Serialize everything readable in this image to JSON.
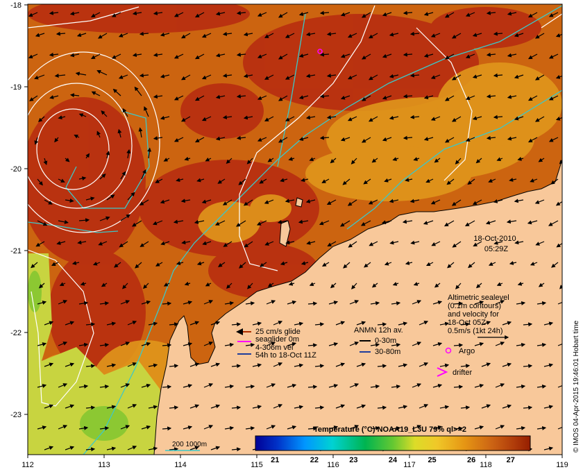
{
  "map": {
    "lon_ticks": [
      "112",
      "113",
      "114",
      "115",
      "116",
      "117",
      "118",
      "119"
    ],
    "lat_ticks": [
      "-18",
      "-19",
      "-20",
      "-21",
      "-22",
      "-23"
    ],
    "date_label": "18-Oct-2010",
    "time_label": "05:29Z",
    "credit": "© IMOS 04-Apr-2015 19:46:01 Hobart time"
  },
  "legend": {
    "altimetry_lines": [
      "Altimetric sealevel",
      "(0.1m contours)",
      "and velocity for",
      "18-Oct 05Z",
      "0.5m/s (1kt 24h)"
    ],
    "argo_label": "Argo",
    "drifter_label": "drifter",
    "glider_lines": [
      "25 cm/s glide",
      "seaglider 0m",
      "4-306m vel",
      "54h to 18-Oct 11Z"
    ],
    "anmn_title": "ANMN 12h av.",
    "anmn_items": [
      "0-30m",
      "30-80m"
    ],
    "isobath_label": "200  1000m",
    "colors": {
      "glide_arrow": "#b03000",
      "seaglider_arrow": "#ff00ff",
      "vel_arrow": "#1e3c9c",
      "anmn_shallow": "#000000",
      "anmn_deep": "#1e3c9c",
      "isobath": "#3cc8c8",
      "argo": "#ff00ff"
    }
  },
  "colorbar": {
    "title": "Temperature (°C) NOAA19_L3U 79% ql>=2",
    "ticks": [
      "21",
      "22",
      "23",
      "24",
      "25",
      "26",
      "27"
    ],
    "range": [
      20.5,
      27.5
    ]
  },
  "palette": {
    "land": "#f8c89a",
    "sst_warm": "#b83010",
    "sst_mid": "#cc6410",
    "sst_cool": "#e6a020",
    "sst_cold": "#b8d640"
  }
}
